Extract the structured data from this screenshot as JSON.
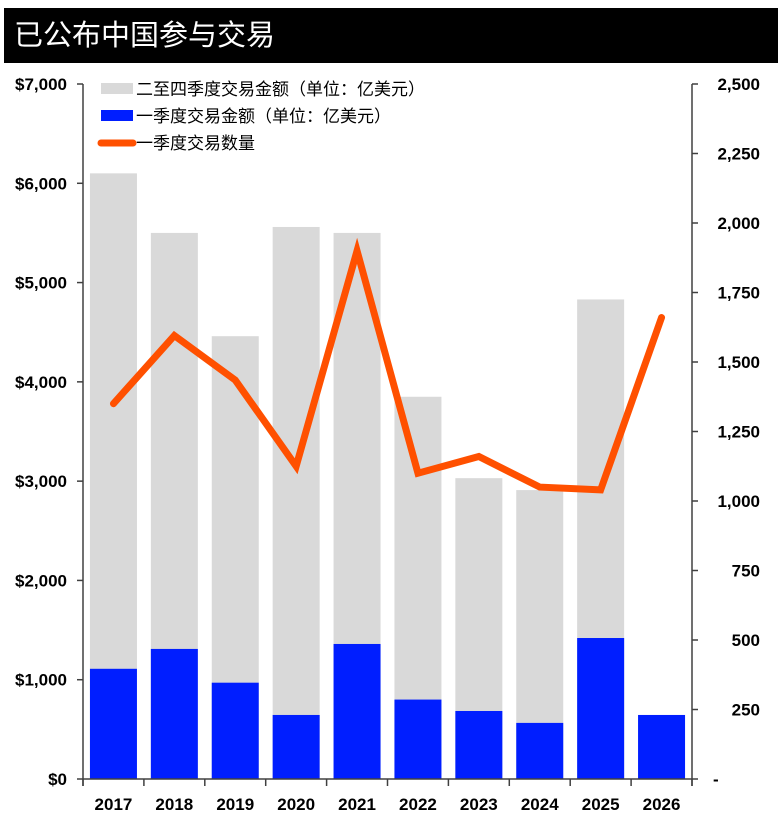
{
  "header": {
    "title": "已公布中国参与交易"
  },
  "colors": {
    "q2_q4_bar": "#d9d9d9",
    "q1_bar": "#001eff",
    "line": "#ff5000",
    "axis": "#404040"
  },
  "legend": [
    {
      "label": "二至四季度交易金额（单位：亿美元）",
      "type": "bar",
      "color": "#d9d9d9"
    },
    {
      "label": "一季度交易金额（单位：亿美元）",
      "type": "bar",
      "color": "#001eff"
    },
    {
      "label": "一季度交易数量",
      "type": "line",
      "color": "#ff5000"
    }
  ],
  "chart_data": {
    "type": "bar",
    "title": "已公布中国参与交易",
    "xlabel": "",
    "ylabel": "",
    "categories": [
      "2017",
      "2018",
      "2019",
      "2020",
      "2021",
      "2022",
      "2023",
      "2024",
      "2025",
      "2026"
    ],
    "series": [
      {
        "name": "二至四季度交易金额（单位：亿美元）",
        "type": "bar",
        "axis": "left",
        "note": "total bar height (full-year)",
        "values": [
          6100,
          5500,
          4460,
          5560,
          5500,
          3850,
          3030,
          2910,
          4830,
          null
        ]
      },
      {
        "name": "一季度交易金额（单位：亿美元）",
        "type": "bar",
        "axis": "left",
        "values": [
          1110,
          1310,
          970,
          645,
          1360,
          800,
          685,
          565,
          1420,
          645
        ]
      },
      {
        "name": "一季度交易数量",
        "type": "line",
        "axis": "right",
        "values": [
          1350,
          1595,
          1435,
          1125,
          1900,
          1100,
          1160,
          1050,
          1040,
          1660
        ]
      }
    ],
    "left_axis": {
      "ylim": [
        0,
        7000
      ],
      "ticks": [
        "$0",
        "$1,000",
        "$2,000",
        "$3,000",
        "$4,000",
        "$5,000",
        "$6,000",
        "$7,000"
      ]
    },
    "right_axis": {
      "ylim": [
        0,
        2500
      ],
      "ticks": [
        "-",
        "250",
        "500",
        "750",
        "1,000",
        "1,250",
        "1,500",
        "1,750",
        "2,000",
        "2,250",
        "2,500"
      ]
    },
    "grid": false,
    "legend_position": "top-left inside"
  }
}
